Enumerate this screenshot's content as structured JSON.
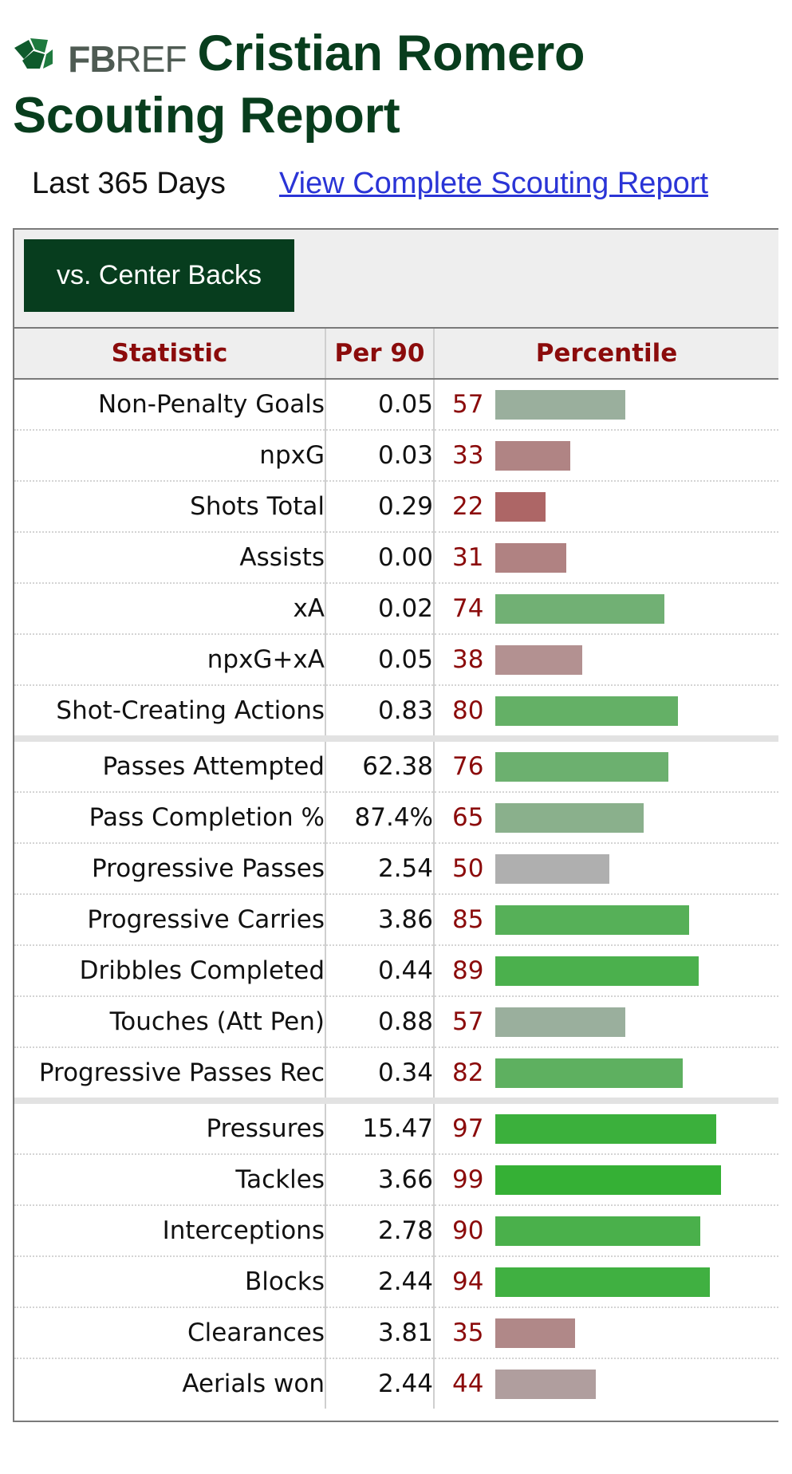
{
  "header": {
    "logo_fb": "FB",
    "logo_ref": "REF",
    "title_line1": "Cristian Romero",
    "title_line2": "Scouting Report"
  },
  "subheader": {
    "period": "Last 365 Days",
    "full_report_link": "View Complete Scouting Report"
  },
  "filter": {
    "label": "vs. Center Backs"
  },
  "table": {
    "columns": [
      "Statistic",
      "Per 90",
      "Percentile"
    ],
    "rows": [
      {
        "stat": "Non-Penalty Goals",
        "per90": "0.05",
        "pct": "57",
        "color": "#9aaf9d"
      },
      {
        "stat": "npxG",
        "per90": "0.03",
        "pct": "33",
        "color": "#b08484"
      },
      {
        "stat": "Shots Total",
        "per90": "0.29",
        "pct": "22",
        "color": "#ad6666"
      },
      {
        "stat": "Assists",
        "per90": "0.00",
        "pct": "31",
        "color": "#b08282"
      },
      {
        "stat": "xA",
        "per90": "0.02",
        "pct": "74",
        "color": "#71b074"
      },
      {
        "stat": "npxG+xA",
        "per90": "0.05",
        "pct": "38",
        "color": "#b39191"
      },
      {
        "stat": "Shot-Creating Actions",
        "per90": "0.83",
        "pct": "80",
        "color": "#64b066"
      },
      {
        "stat": "Passes Attempted",
        "per90": "62.38",
        "pct": "76",
        "color": "#6cb06f"
      },
      {
        "stat": "Pass Completion %",
        "per90": "87.4%",
        "pct": "65",
        "color": "#8ab08c"
      },
      {
        "stat": "Progressive Passes",
        "per90": "2.54",
        "pct": "50",
        "color": "#afafaf"
      },
      {
        "stat": "Progressive Carries",
        "per90": "3.86",
        "pct": "85",
        "color": "#56b058"
      },
      {
        "stat": "Dribbles Completed",
        "per90": "0.44",
        "pct": "89",
        "color": "#4bb04d"
      },
      {
        "stat": "Touches (Att Pen)",
        "per90": "0.88",
        "pct": "57",
        "color": "#9aaf9d"
      },
      {
        "stat": "Progressive Passes Rec",
        "per90": "0.34",
        "pct": "82",
        "color": "#5eb060"
      },
      {
        "stat": "Pressures",
        "per90": "15.47",
        "pct": "97",
        "color": "#3bb03c"
      },
      {
        "stat": "Tackles",
        "per90": "3.66",
        "pct": "99",
        "color": "#35b035"
      },
      {
        "stat": "Interceptions",
        "per90": "2.78",
        "pct": "90",
        "color": "#4ab04b"
      },
      {
        "stat": "Blocks",
        "per90": "2.44",
        "pct": "94",
        "color": "#40b041"
      },
      {
        "stat": "Clearances",
        "per90": "3.81",
        "pct": "35",
        "color": "#b08888"
      },
      {
        "stat": "Aerials won",
        "per90": "2.44",
        "pct": "44",
        "color": "#b09e9e"
      }
    ]
  }
}
